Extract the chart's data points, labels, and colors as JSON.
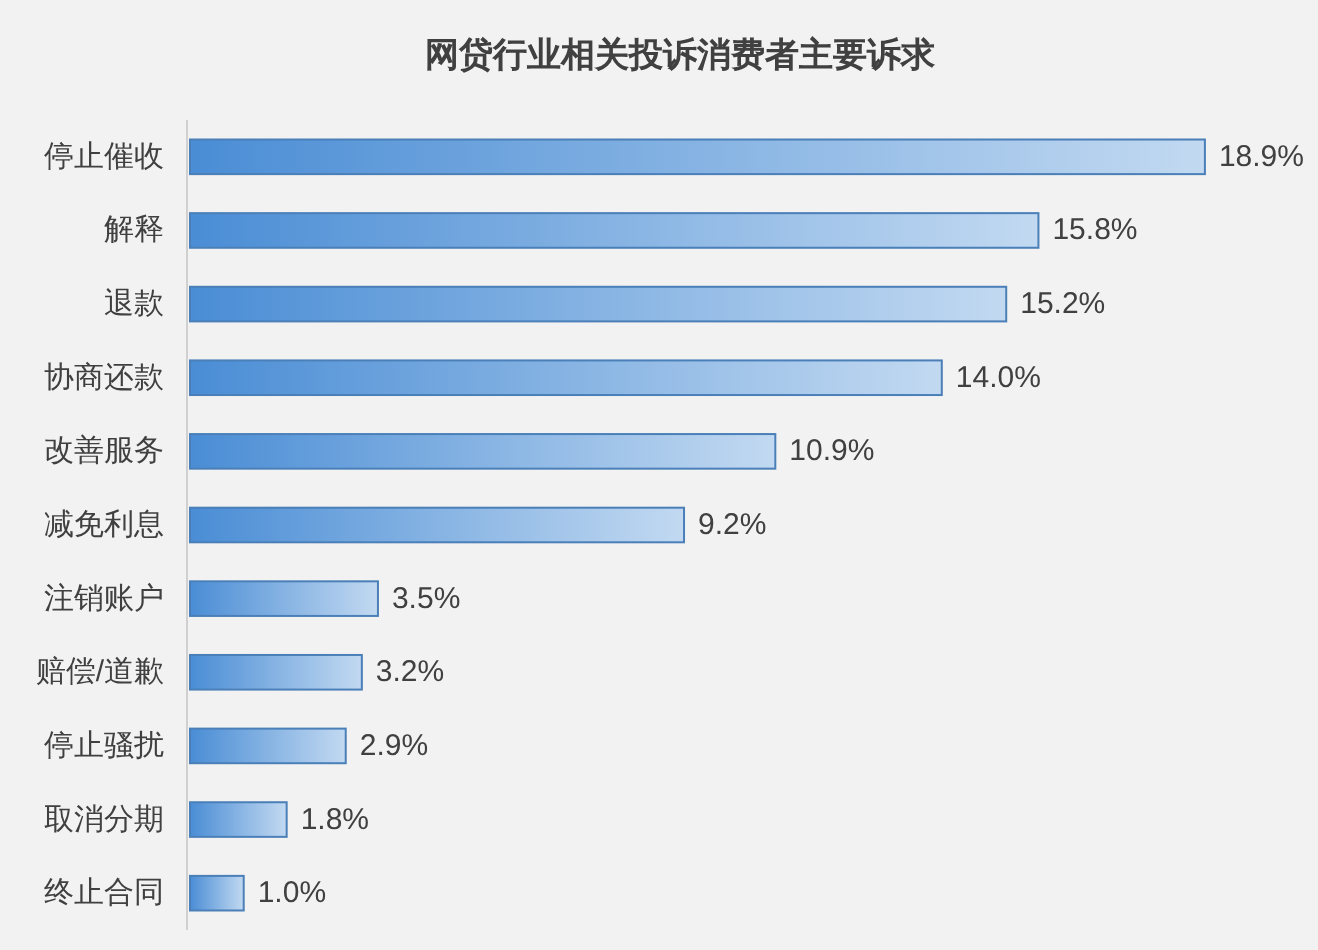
{
  "chart_data": {
    "type": "bar",
    "orientation": "horizontal",
    "title": "网贷行业相关投诉消费者主要诉求",
    "categories": [
      "停止催收",
      "解释",
      "退款",
      "协商还款",
      "改善服务",
      "减免利息",
      "注销账户",
      "赔偿/道歉",
      "停止骚扰",
      "取消分期",
      "终止合同"
    ],
    "values": [
      18.9,
      15.8,
      15.2,
      14.0,
      10.9,
      9.2,
      3.5,
      3.2,
      2.9,
      1.8,
      1.0
    ],
    "value_labels": [
      "18.9%",
      "15.8%",
      "15.2%",
      "14.0%",
      "10.9%",
      "9.2%",
      "3.5%",
      "3.2%",
      "2.9%",
      "1.8%",
      "1.0%"
    ],
    "color": "#4a7fb8"
  }
}
